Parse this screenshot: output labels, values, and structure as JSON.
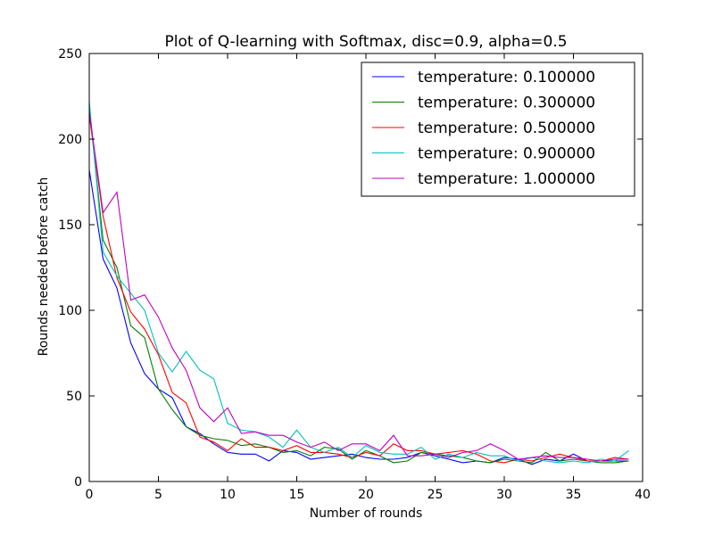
{
  "chart_data": {
    "type": "line",
    "title": "Plot of Q-learning with Softmax, disc=0.9, alpha=0.5",
    "xlabel": "Number of rounds",
    "ylabel": "Rounds needed before catch",
    "xlim": [
      0,
      40
    ],
    "ylim": [
      0,
      250
    ],
    "xticks": [
      "0",
      "5",
      "10",
      "15",
      "20",
      "25",
      "30",
      "35",
      "40"
    ],
    "yticks": [
      "0",
      "50",
      "100",
      "150",
      "200",
      "250"
    ],
    "grid": false,
    "legend_position": "top-right",
    "x": [
      0,
      1,
      2,
      3,
      4,
      5,
      6,
      7,
      8,
      9,
      10,
      11,
      12,
      13,
      14,
      15,
      16,
      17,
      18,
      19,
      20,
      21,
      22,
      23,
      24,
      25,
      26,
      27,
      28,
      29,
      30,
      31,
      32,
      33,
      34,
      35,
      36,
      37,
      38,
      39
    ],
    "series": [
      {
        "name": "temperature: 0.100000",
        "color": "#0000ff",
        "values": [
          182,
          130,
          113,
          81,
          63,
          54,
          49,
          32,
          28,
          22,
          17,
          16,
          16,
          12,
          18,
          17,
          13,
          14,
          15,
          16,
          14,
          13,
          13,
          14,
          17,
          15,
          13,
          11,
          12,
          11,
          14,
          13,
          10,
          13,
          12,
          16,
          12,
          12,
          12,
          12
        ]
      },
      {
        "name": "temperature: 0.300000",
        "color": "#008000",
        "values": [
          218,
          141,
          125,
          91,
          84,
          54,
          42,
          32,
          27,
          25,
          24,
          21,
          22,
          20,
          17,
          18,
          15,
          20,
          19,
          13,
          18,
          15,
          11,
          12,
          17,
          16,
          15,
          14,
          12,
          11,
          13,
          12,
          11,
          17,
          12,
          13,
          12,
          11,
          11,
          12
        ]
      },
      {
        "name": "temperature: 0.500000",
        "color": "#ff0000",
        "values": [
          214,
          155,
          119,
          99,
          89,
          74,
          52,
          46,
          26,
          23,
          18,
          25,
          20,
          20,
          18,
          21,
          17,
          17,
          16,
          14,
          17,
          15,
          22,
          18,
          18,
          16,
          17,
          18,
          16,
          12,
          11,
          13,
          12,
          14,
          16,
          14,
          12,
          12,
          14,
          13
        ]
      },
      {
        "name": "temperature: 0.900000",
        "color": "#00bfbf",
        "values": [
          222,
          134,
          120,
          110,
          100,
          75,
          64,
          76,
          65,
          60,
          34,
          30,
          29,
          26,
          20,
          30,
          20,
          17,
          20,
          14,
          21,
          17,
          16,
          16,
          20,
          13,
          16,
          14,
          17,
          15,
          15,
          12,
          14,
          12,
          11,
          12,
          11,
          13,
          12,
          18
        ]
      },
      {
        "name": "temperature: 1.000000",
        "color": "#bf00bf",
        "values": [
          216,
          157,
          169,
          106,
          109,
          96,
          78,
          65,
          43,
          35,
          43,
          28,
          29,
          27,
          27,
          23,
          20,
          23,
          18,
          22,
          22,
          18,
          27,
          15,
          15,
          16,
          14,
          17,
          18,
          22,
          18,
          13,
          14,
          15,
          14,
          14,
          13,
          12,
          13,
          13
        ]
      }
    ]
  }
}
